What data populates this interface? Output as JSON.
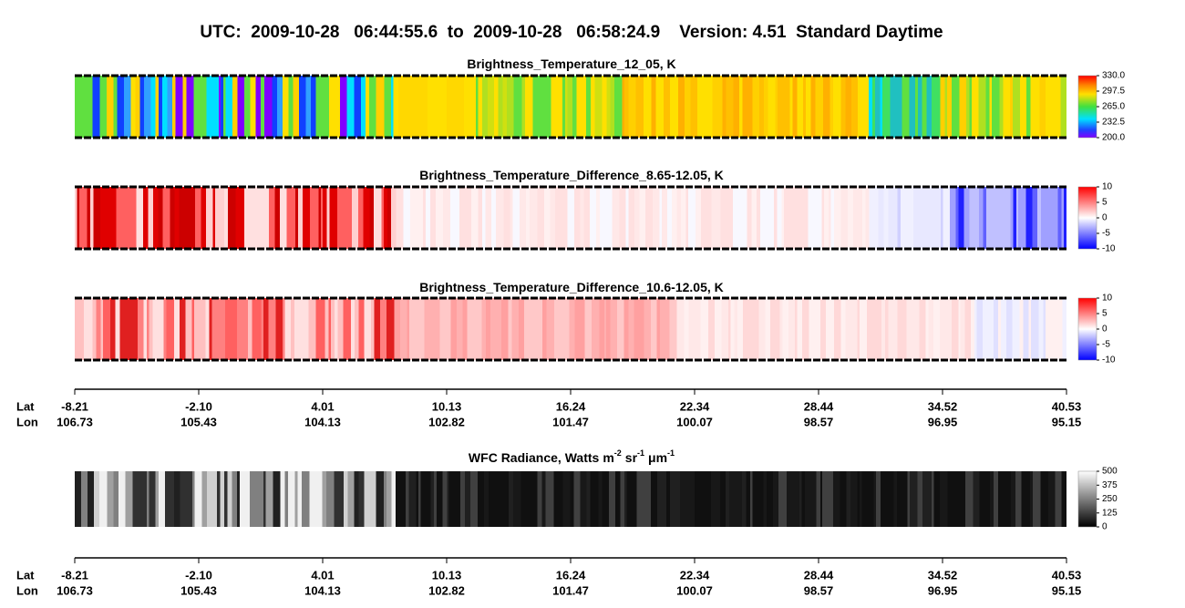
{
  "title": "UTC:  2009-10-28   06:44:55.6  to  2009-10-28   06:58:24.9    Version: 4.51  Standard Daytime",
  "chart_data": [
    {
      "type": "heatmap",
      "title": "Brightness_Temperature_12_05, K",
      "colormap": "rainbow",
      "clim": [
        200,
        330
      ],
      "cticks": [
        {
          "value": 330,
          "label": "330.0"
        },
        297.5,
        {
          "value": 265,
          "label": "265.0"
        },
        232.5,
        {
          "value": 200,
          "label": "200.0"
        }
      ]
    },
    {
      "type": "heatmap",
      "title": "Brightness_Temperature_Difference_8.65-12.05, K",
      "colormap": "bwr",
      "clim": [
        -10,
        10
      ],
      "cticks": [
        10,
        5,
        0,
        -5,
        -10
      ]
    },
    {
      "type": "heatmap",
      "title": "Brightness_Temperature_Difference_10.6-12.05, K",
      "colormap": "bwr",
      "clim": [
        -10,
        10
      ],
      "cticks": [
        10,
        5,
        0,
        -5,
        -10
      ]
    },
    {
      "type": "heatmap",
      "title": "WFC Radiance, Watts",
      "units": [
        {
          "base": "m",
          "exp": "-2"
        },
        {
          "base": "sr",
          "exp": "-1"
        },
        {
          "base": "μm",
          "exp": "-1"
        }
      ],
      "colormap": "gray",
      "clim": [
        0,
        500
      ],
      "cticks": [
        500,
        375,
        250,
        125,
        0
      ]
    }
  ],
  "xaxes": [
    {
      "lat_label": "Lat",
      "lon_label": "Lon",
      "lat": [
        -8.21,
        {
          "value": -2.1,
          "label": "-2.10"
        },
        4.01,
        10.13,
        16.24,
        22.34,
        28.44,
        34.52,
        40.53
      ],
      "lon": [
        106.73,
        105.43,
        104.13,
        102.82,
        101.47,
        100.07,
        98.57,
        96.95,
        95.15
      ]
    },
    {
      "lat_label": "Lat",
      "lon_label": "Lon",
      "lat": [
        -8.21,
        {
          "value": -2.1,
          "label": "-2.10"
        },
        4.01,
        10.13,
        16.24,
        22.34,
        28.44,
        34.52,
        40.53
      ],
      "lon": [
        106.73,
        105.43,
        104.13,
        102.82,
        101.47,
        100.07,
        98.57,
        96.95,
        95.15
      ]
    }
  ]
}
